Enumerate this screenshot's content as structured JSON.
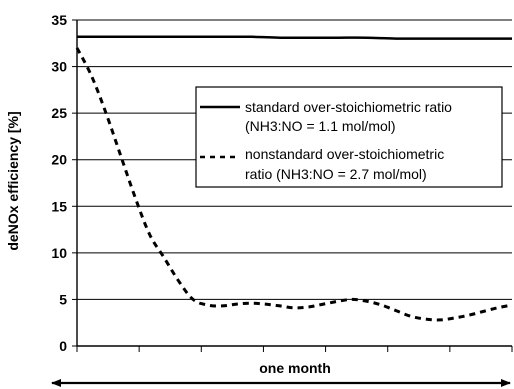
{
  "chart_data": {
    "type": "line",
    "title": "",
    "xlabel": "one month",
    "ylabel": "deNOx efficiency [%]",
    "ylim": [
      0,
      35
    ],
    "yticks": [
      0,
      5,
      10,
      15,
      20,
      25,
      30,
      35
    ],
    "grid": true,
    "legend_position": "center-right",
    "x_arrow": "double-headed",
    "series": [
      {
        "name_lines": [
          "standard over-stoichiometric ratio",
          "(NH3:NO = 1.1 mol/mol)"
        ],
        "style": "solid",
        "color": "#000000",
        "x": [
          0,
          2,
          4,
          6,
          8,
          10,
          12,
          14,
          16,
          18,
          20,
          22,
          24,
          26,
          28,
          30
        ],
        "y": [
          33.2,
          33.2,
          33.2,
          33.2,
          33.2,
          33.2,
          33.2,
          33.1,
          33.1,
          33.1,
          33.1,
          33.0,
          33.0,
          33.0,
          33.0,
          33.0
        ]
      },
      {
        "name_lines": [
          "nonstandard over-stoichiometric",
          "ratio (NH3:NO = 2.7 mol/mol)"
        ],
        "style": "dashed",
        "color": "#000000",
        "x": [
          0,
          1,
          2,
          3,
          4,
          5,
          6,
          7,
          8,
          9,
          10,
          11,
          12,
          13,
          14,
          15,
          16,
          17,
          18,
          19,
          20,
          21,
          22,
          23,
          24,
          25,
          26,
          27,
          28,
          29,
          30
        ],
        "y": [
          32.0,
          29.0,
          25.0,
          20.5,
          16.0,
          12.0,
          9.5,
          7.0,
          5.0,
          4.4,
          4.3,
          4.5,
          4.6,
          4.5,
          4.3,
          4.1,
          4.2,
          4.5,
          4.8,
          5.0,
          4.8,
          4.4,
          3.8,
          3.2,
          2.9,
          2.8,
          3.0,
          3.3,
          3.7,
          4.1,
          4.4
        ]
      }
    ]
  }
}
